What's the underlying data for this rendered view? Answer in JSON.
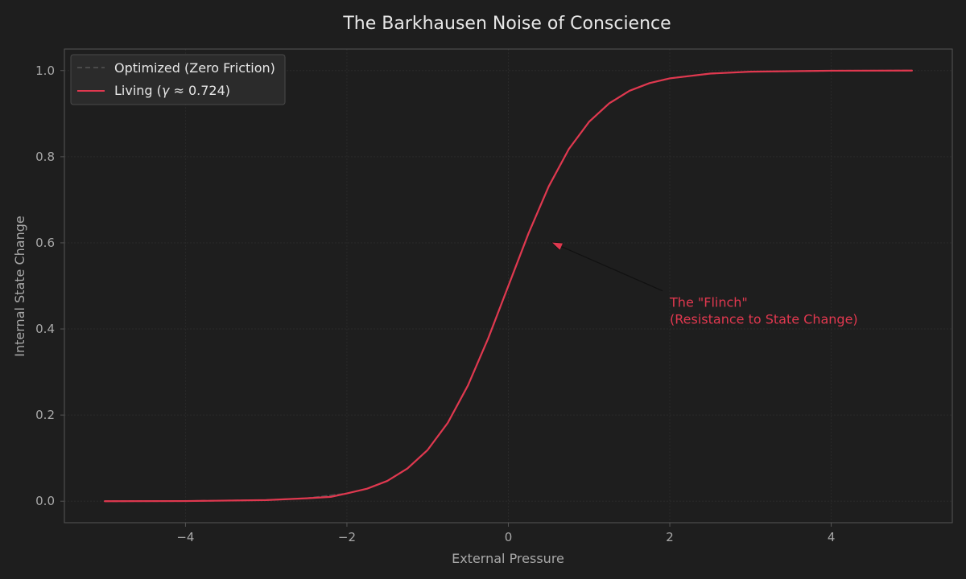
{
  "chart_data": {
    "type": "line",
    "title": "The Barkhausen Noise of Conscience",
    "xlabel": "External Pressure",
    "ylabel": "Internal State Change",
    "xlim": [
      -5.5,
      5.5
    ],
    "ylim": [
      -0.05,
      1.05
    ],
    "x_ticks": [
      -4,
      -2,
      0,
      2,
      4
    ],
    "x_tick_labels": [
      "−4",
      "−2",
      "0",
      "2",
      "4"
    ],
    "y_ticks": [
      0.0,
      0.2,
      0.4,
      0.6,
      0.8,
      1.0
    ],
    "y_tick_labels": [
      "0.0",
      "0.2",
      "0.4",
      "0.6",
      "0.8",
      "1.0"
    ],
    "grid": true,
    "legend_position": "top-left",
    "colors": {
      "background": "#1e1e1e",
      "axes_frame": "#555555",
      "grid": "#2a2a2a",
      "living": "#e0384f",
      "optimized": "#4a4a4a",
      "legend_bg": "#2b2b2b"
    },
    "series": [
      {
        "name": "Optimized (Zero Friction)",
        "style": "dashed",
        "x": [
          -5,
          -4,
          -3,
          -2.5,
          -2,
          -1.75,
          -1.5,
          -1.25,
          -1,
          -0.75,
          -0.5,
          -0.25,
          0,
          0.25,
          0.5,
          0.75,
          1,
          1.25,
          1.5,
          1.75,
          2,
          2.5,
          3,
          4,
          5
        ],
        "y": [
          0.0,
          0.0003,
          0.0025,
          0.0067,
          0.018,
          0.029,
          0.047,
          0.076,
          0.119,
          0.182,
          0.269,
          0.378,
          0.5,
          0.622,
          0.731,
          0.818,
          0.881,
          0.924,
          0.953,
          0.971,
          0.982,
          0.993,
          0.9975,
          0.9997,
          1.0
        ]
      },
      {
        "name": "Living (γ ≈ 0.724)",
        "name_parts": [
          "Living (",
          "γ",
          " ≈ 0.724)"
        ],
        "style": "solid",
        "x": [
          -5,
          -4,
          -3,
          -2.5,
          -2.2,
          -2,
          -1.75,
          -1.5,
          -1.25,
          -1,
          -0.75,
          -0.5,
          -0.25,
          0,
          0.25,
          0.5,
          0.75,
          1,
          1.25,
          1.5,
          1.75,
          2,
          2.5,
          3,
          4,
          5
        ],
        "y": [
          0.0,
          0.0003,
          0.0025,
          0.0067,
          0.01,
          0.018,
          0.029,
          0.047,
          0.076,
          0.119,
          0.182,
          0.269,
          0.378,
          0.5,
          0.622,
          0.731,
          0.818,
          0.881,
          0.924,
          0.953,
          0.971,
          0.982,
          0.993,
          0.9975,
          0.9997,
          1.0
        ]
      }
    ],
    "annotation": {
      "text_lines": [
        "The \"Flinch\"",
        "(Resistance to State Change)"
      ],
      "text_at": [
        2.0,
        0.41
      ],
      "arrow_to": [
        0.55,
        0.6
      ]
    }
  }
}
